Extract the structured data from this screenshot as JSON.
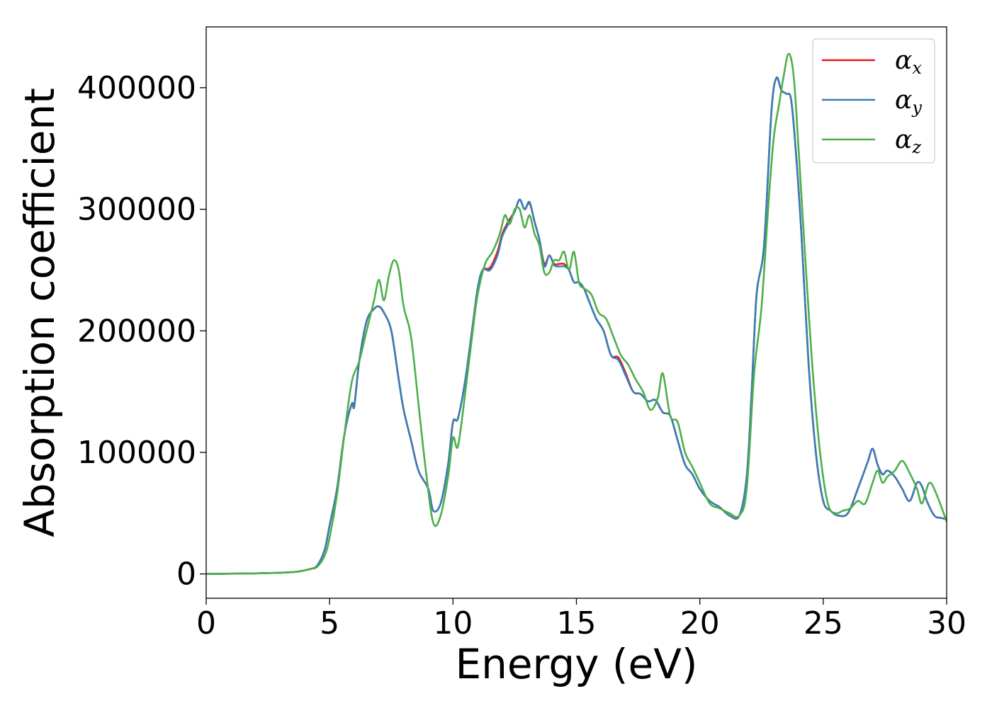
{
  "chart_data": {
    "type": "line",
    "title": "",
    "xlabel": "Energy (eV)",
    "ylabel": "Absorption coefficient",
    "xlim": [
      0,
      30
    ],
    "ylim": [
      -20000,
      450000
    ],
    "xticks": [
      0,
      5,
      10,
      15,
      20,
      25,
      30
    ],
    "xtick_labels": [
      "0",
      "5",
      "10",
      "15",
      "20",
      "25",
      "30"
    ],
    "yticks": [
      0,
      100000,
      200000,
      300000,
      400000
    ],
    "ytick_labels": [
      "0",
      "100000",
      "200000",
      "300000",
      "400000"
    ],
    "grid": false,
    "legend_position": "top-right",
    "series": [
      {
        "name": "αx",
        "base": "α",
        "sub": "x",
        "color": "#e41a1c",
        "x": [
          0,
          2,
          3.5,
          4.2,
          4.5,
          4.8,
          5.0,
          5.3,
          5.6,
          5.9,
          6.0,
          6.2,
          6.5,
          6.8,
          7.0,
          7.2,
          7.5,
          7.8,
          8.0,
          8.3,
          8.6,
          9.0,
          9.2,
          9.5,
          9.8,
          10.0,
          10.2,
          10.5,
          10.8,
          11.0,
          11.2,
          11.5,
          11.8,
          12.0,
          12.3,
          12.5,
          12.7,
          12.9,
          13.1,
          13.3,
          13.5,
          13.7,
          13.9,
          14.1,
          14.3,
          14.5,
          14.7,
          14.9,
          15.1,
          15.3,
          15.5,
          15.8,
          16.1,
          16.4,
          16.7,
          17.0,
          17.3,
          17.6,
          17.9,
          18.2,
          18.5,
          18.8,
          19.1,
          19.4,
          19.7,
          20.0,
          20.4,
          20.8,
          21.2,
          21.6,
          21.9,
          22.1,
          22.3,
          22.6,
          22.9,
          23.1,
          23.3,
          23.5,
          23.7,
          23.9,
          24.1,
          24.4,
          24.7,
          25.0,
          25.3,
          25.6,
          26.0,
          26.4,
          26.8,
          27.0,
          27.2,
          27.4,
          27.6,
          27.9,
          28.2,
          28.5,
          28.8,
          29.0,
          29.2,
          29.5,
          29.8,
          30.0
        ],
        "y": [
          0,
          500,
          1500,
          4000,
          7000,
          20000,
          40000,
          70000,
          115000,
          140000,
          138000,
          175000,
          208000,
          218000,
          220000,
          215000,
          200000,
          160000,
          135000,
          110000,
          85000,
          70000,
          52000,
          58000,
          90000,
          125000,
          128000,
          160000,
          205000,
          235000,
          250000,
          252000,
          265000,
          280000,
          292000,
          298000,
          308000,
          300000,
          305000,
          290000,
          275000,
          255000,
          262000,
          255000,
          255000,
          255000,
          250000,
          240000,
          240000,
          235000,
          225000,
          210000,
          200000,
          180000,
          178000,
          165000,
          150000,
          148000,
          142000,
          143000,
          133000,
          130000,
          110000,
          90000,
          82000,
          70000,
          60000,
          55000,
          48000,
          48000,
          80000,
          150000,
          230000,
          270000,
          380000,
          408000,
          398000,
          395000,
          390000,
          345000,
          285000,
          175000,
          100000,
          60000,
          52000,
          48000,
          50000,
          70000,
          92000,
          103000,
          90000,
          82000,
          85000,
          80000,
          70000,
          60000,
          75000,
          72000,
          60000,
          48000,
          46000,
          45000
        ]
      },
      {
        "name": "αy",
        "base": "α",
        "sub": "y",
        "color": "#377eb8",
        "x": [
          0,
          2,
          3.5,
          4.2,
          4.5,
          4.8,
          5.0,
          5.3,
          5.6,
          5.9,
          6.0,
          6.2,
          6.5,
          6.8,
          7.0,
          7.2,
          7.5,
          7.8,
          8.0,
          8.3,
          8.6,
          9.0,
          9.2,
          9.5,
          9.8,
          10.0,
          10.2,
          10.5,
          10.8,
          11.0,
          11.2,
          11.5,
          11.8,
          12.0,
          12.3,
          12.5,
          12.7,
          12.9,
          13.1,
          13.3,
          13.5,
          13.7,
          13.9,
          14.1,
          14.3,
          14.5,
          14.7,
          14.9,
          15.1,
          15.3,
          15.5,
          15.8,
          16.1,
          16.4,
          16.7,
          17.0,
          17.3,
          17.6,
          17.9,
          18.2,
          18.5,
          18.8,
          19.1,
          19.4,
          19.7,
          20.0,
          20.4,
          20.8,
          21.2,
          21.6,
          21.9,
          22.1,
          22.3,
          22.6,
          22.9,
          23.1,
          23.3,
          23.5,
          23.7,
          23.9,
          24.1,
          24.4,
          24.7,
          25.0,
          25.3,
          25.6,
          26.0,
          26.4,
          26.8,
          27.0,
          27.2,
          27.4,
          27.6,
          27.9,
          28.2,
          28.5,
          28.8,
          29.0,
          29.2,
          29.5,
          29.8,
          30.0
        ],
        "y": [
          0,
          500,
          1500,
          4000,
          7000,
          20000,
          40000,
          70000,
          115000,
          140000,
          138000,
          175000,
          208000,
          218000,
          220000,
          215000,
          200000,
          160000,
          135000,
          110000,
          85000,
          70000,
          52000,
          58000,
          90000,
          125000,
          128000,
          160000,
          205000,
          235000,
          250000,
          250000,
          262000,
          278000,
          290000,
          298000,
          308000,
          300000,
          306000,
          290000,
          275000,
          253000,
          262000,
          254000,
          253000,
          253000,
          250000,
          240000,
          240000,
          235000,
          225000,
          210000,
          200000,
          180000,
          176000,
          163000,
          150000,
          148000,
          142000,
          143000,
          133000,
          130000,
          110000,
          90000,
          82000,
          70000,
          60000,
          55000,
          48000,
          48000,
          80000,
          150000,
          230000,
          270000,
          380000,
          408000,
          398000,
          395000,
          390000,
          345000,
          285000,
          175000,
          100000,
          60000,
          52000,
          48000,
          50000,
          70000,
          92000,
          103000,
          90000,
          82000,
          85000,
          80000,
          70000,
          60000,
          75000,
          72000,
          60000,
          48000,
          46000,
          45000
        ]
      },
      {
        "name": "αz",
        "base": "α",
        "sub": "z",
        "color": "#4daf4a",
        "x": [
          0,
          2,
          3.5,
          4.2,
          4.5,
          4.8,
          5.0,
          5.3,
          5.6,
          5.9,
          6.2,
          6.5,
          6.8,
          7.0,
          7.2,
          7.4,
          7.6,
          7.8,
          8.0,
          8.3,
          8.6,
          8.9,
          9.2,
          9.5,
          9.8,
          10.0,
          10.2,
          10.5,
          10.8,
          11.0,
          11.3,
          11.6,
          11.9,
          12.1,
          12.3,
          12.5,
          12.7,
          12.9,
          13.1,
          13.3,
          13.5,
          13.7,
          13.9,
          14.1,
          14.3,
          14.5,
          14.7,
          14.9,
          15.1,
          15.3,
          15.6,
          15.9,
          16.2,
          16.5,
          16.8,
          17.1,
          17.4,
          17.7,
          18.0,
          18.3,
          18.5,
          18.8,
          19.1,
          19.4,
          19.7,
          20.0,
          20.4,
          20.8,
          21.2,
          21.6,
          21.9,
          22.2,
          22.5,
          22.8,
          23.0,
          23.2,
          23.4,
          23.6,
          23.8,
          24.0,
          24.3,
          24.6,
          24.9,
          25.2,
          25.5,
          25.8,
          26.1,
          26.4,
          26.7,
          27.0,
          27.2,
          27.4,
          27.6,
          27.9,
          28.2,
          28.5,
          28.8,
          29.0,
          29.3,
          29.6,
          30.0
        ],
        "y": [
          0,
          500,
          1500,
          4000,
          6000,
          15000,
          30000,
          65000,
          115000,
          158000,
          175000,
          200000,
          225000,
          242000,
          225000,
          245000,
          258000,
          250000,
          220000,
          195000,
          140000,
          85000,
          42000,
          48000,
          80000,
          112000,
          105000,
          150000,
          200000,
          230000,
          255000,
          265000,
          280000,
          295000,
          288000,
          300000,
          300000,
          285000,
          295000,
          280000,
          270000,
          248000,
          248000,
          258000,
          258000,
          265000,
          250000,
          265000,
          240000,
          235000,
          230000,
          215000,
          210000,
          195000,
          180000,
          172000,
          160000,
          150000,
          135000,
          145000,
          165000,
          130000,
          125000,
          100000,
          88000,
          75000,
          58000,
          54000,
          50000,
          48000,
          70000,
          165000,
          220000,
          310000,
          360000,
          385000,
          410000,
          428000,
          410000,
          350000,
          250000,
          160000,
          95000,
          57000,
          50000,
          52000,
          54000,
          60000,
          58000,
          75000,
          85000,
          75000,
          80000,
          85000,
          93000,
          83000,
          70000,
          58000,
          75000,
          65000,
          43000
        ]
      }
    ]
  }
}
